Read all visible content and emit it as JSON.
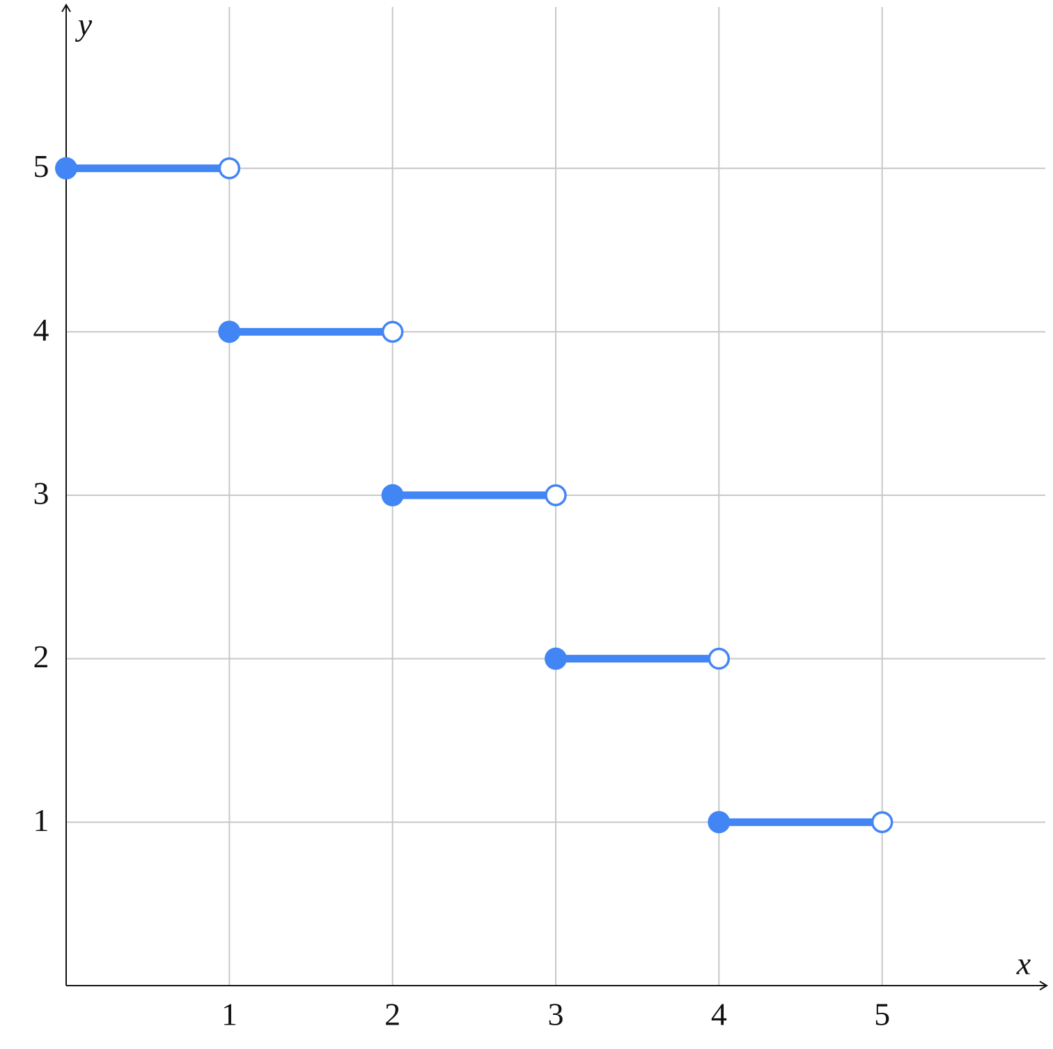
{
  "chart_data": {
    "type": "step",
    "xlabel": "x",
    "ylabel": "y",
    "x": [
      0,
      1,
      2,
      3,
      4
    ],
    "x_end": [
      1,
      2,
      3,
      4,
      5
    ],
    "values": [
      5,
      4,
      3,
      2,
      1
    ],
    "color": "#4285f4",
    "xlim": [
      0,
      6
    ],
    "ylim": [
      0,
      6
    ],
    "xticks": [
      1,
      2,
      3,
      4,
      5
    ],
    "yticks": [
      1,
      2,
      3,
      4,
      5
    ],
    "grid": true
  }
}
